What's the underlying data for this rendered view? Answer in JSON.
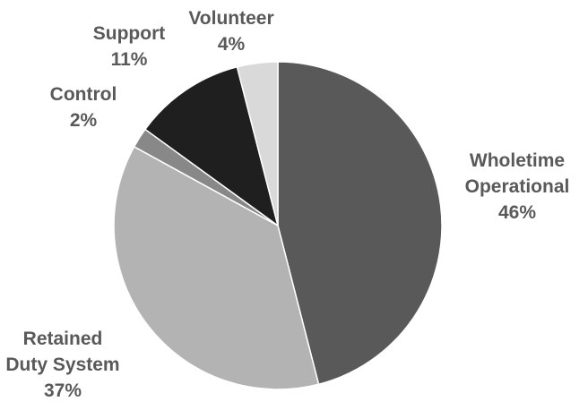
{
  "chart_data": {
    "type": "pie",
    "title": "",
    "slices": [
      {
        "label_lines": [
          "Wholetime",
          "Operational"
        ],
        "percent_label": "46%",
        "value": 46,
        "color": "#595959"
      },
      {
        "label_lines": [
          "Retained",
          "Duty System"
        ],
        "percent_label": "37%",
        "value": 37,
        "color": "#b3b3b3"
      },
      {
        "label_lines": [
          "Control"
        ],
        "percent_label": "2%",
        "value": 2,
        "color": "#888888"
      },
      {
        "label_lines": [
          "Support"
        ],
        "percent_label": "11%",
        "value": 11,
        "color": "#1f1f1f"
      },
      {
        "label_lines": [
          "Volunteer"
        ],
        "percent_label": "4%",
        "value": 4,
        "color": "#d9d9d9"
      }
    ],
    "start_angle_deg": 0,
    "direction": "clockwise",
    "slice_border_color": "#ffffff",
    "label_color": "#595959"
  }
}
